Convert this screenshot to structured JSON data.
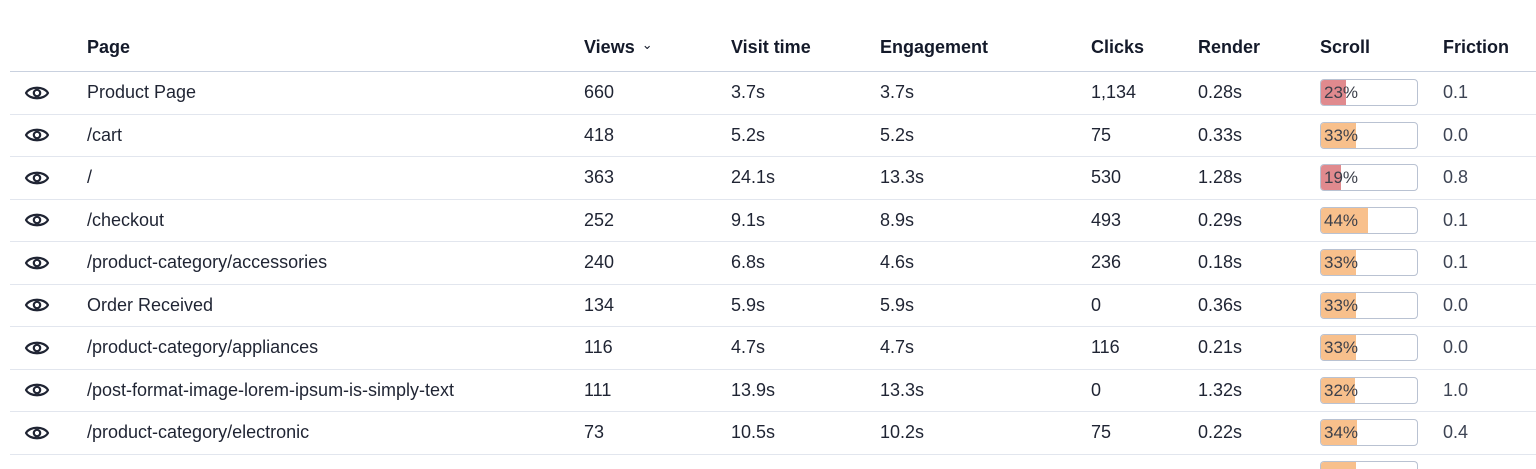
{
  "table": {
    "columns": {
      "page": "Page",
      "views": "Views",
      "visit_time": "Visit time",
      "engagement": "Engagement",
      "clicks": "Clicks",
      "render": "Render",
      "scroll": "Scroll",
      "friction": "Friction"
    },
    "sort_icon": "chevron-down-icon",
    "row_icon": "eye-icon",
    "colors": {
      "scroll_red": "#e08a8e",
      "scroll_orange": "#f8c08c",
      "border": "#e2e6ee"
    },
    "rows": [
      {
        "page": "Product Page",
        "views": "660",
        "visit_time": "3.7s",
        "engagement": "3.7s",
        "clicks": "1,134",
        "render": "0.28s",
        "scroll": "23%",
        "scroll_value": 0.23,
        "scroll_color": "red",
        "friction": "0.1"
      },
      {
        "page": "/cart",
        "views": "418",
        "visit_time": "5.2s",
        "engagement": "5.2s",
        "clicks": "75",
        "render": "0.33s",
        "scroll": "33%",
        "scroll_value": 0.33,
        "scroll_color": "orange",
        "friction": "0.0"
      },
      {
        "page": "/",
        "views": "363",
        "visit_time": "24.1s",
        "engagement": "13.3s",
        "clicks": "530",
        "render": "1.28s",
        "scroll": "19%",
        "scroll_value": 0.19,
        "scroll_color": "red",
        "friction": "0.8"
      },
      {
        "page": "/checkout",
        "views": "252",
        "visit_time": "9.1s",
        "engagement": "8.9s",
        "clicks": "493",
        "render": "0.29s",
        "scroll": "44%",
        "scroll_value": 0.44,
        "scroll_color": "orange",
        "friction": "0.1"
      },
      {
        "page": "/product-category/accessories",
        "views": "240",
        "visit_time": "6.8s",
        "engagement": "4.6s",
        "clicks": "236",
        "render": "0.18s",
        "scroll": "33%",
        "scroll_value": 0.33,
        "scroll_color": "orange",
        "friction": "0.1"
      },
      {
        "page": "Order Received",
        "views": "134",
        "visit_time": "5.9s",
        "engagement": "5.9s",
        "clicks": "0",
        "render": "0.36s",
        "scroll": "33%",
        "scroll_value": 0.33,
        "scroll_color": "orange",
        "friction": "0.0"
      },
      {
        "page": "/product-category/appliances",
        "views": "116",
        "visit_time": "4.7s",
        "engagement": "4.7s",
        "clicks": "116",
        "render": "0.21s",
        "scroll": "33%",
        "scroll_value": 0.33,
        "scroll_color": "orange",
        "friction": "0.0"
      },
      {
        "page": "/post-format-image-lorem-ipsum-is-simply-text",
        "views": "111",
        "visit_time": "13.9s",
        "engagement": "13.3s",
        "clicks": "0",
        "render": "1.32s",
        "scroll": "32%",
        "scroll_value": 0.32,
        "scroll_color": "orange",
        "friction": "1.0"
      },
      {
        "page": "/product-category/electronic",
        "views": "73",
        "visit_time": "10.5s",
        "engagement": "10.2s",
        "clicks": "75",
        "render": "0.22s",
        "scroll": "34%",
        "scroll_value": 0.34,
        "scroll_color": "orange",
        "friction": "0.4"
      }
    ],
    "partial_row": {
      "scroll_value": 0.33,
      "scroll_color": "orange"
    }
  }
}
